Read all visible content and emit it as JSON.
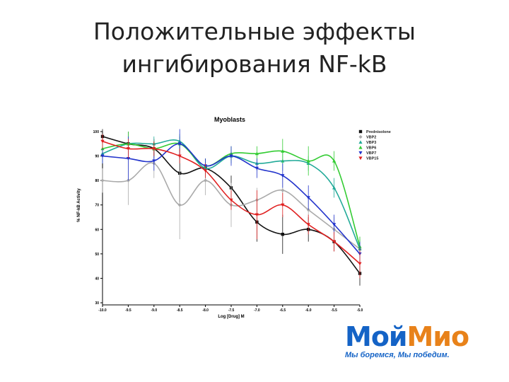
{
  "slide": {
    "title": [
      "Положительные эффекты",
      "ингибирования NF-kB"
    ],
    "logo": [
      "Мой",
      "Мио"
    ],
    "logo_slogan": "Мы боремся, Мы победим."
  },
  "chart_data": {
    "type": "scatter",
    "title": "Myoblasts",
    "x_label": "Log [Drug] M",
    "y_label": "% NF-kB Activity",
    "x": [
      -10,
      -9.5,
      -9,
      -8.5,
      -8,
      -7.5,
      -7,
      -6.5,
      -6,
      -5.5,
      -5
    ],
    "xlim": [
      -10,
      -5
    ],
    "xticks": [
      {
        "value": -10,
        "label": "-10.0"
      },
      -9.5,
      {
        "value": -9,
        "label": "-9.0"
      },
      -8.5,
      {
        "value": -8,
        "label": "-8.0"
      },
      -7.5,
      {
        "value": -7,
        "label": "-7.0"
      },
      -6.5,
      {
        "value": -6,
        "label": "-6.0"
      },
      -5.5,
      {
        "value": -5,
        "label": "-5.0"
      }
    ],
    "ylim": [
      30,
      100
    ],
    "yticks": [
      30,
      40,
      50,
      60,
      70,
      80,
      90,
      100
    ],
    "series": [
      {
        "name": "Prednisolone",
        "color": "#111111",
        "marker": "square",
        "values": [
          98,
          95,
          93,
          83,
          85,
          77,
          63,
          58,
          60,
          55,
          42
        ],
        "errors": [
          3,
          5,
          4,
          12,
          4,
          5,
          8,
          8,
          5,
          4,
          5
        ]
      },
      {
        "name": "VBP2",
        "color": "#aaaaaa",
        "marker": "diamond",
        "values": [
          80,
          80,
          87,
          70,
          80,
          70,
          72,
          76,
          68,
          60,
          52
        ],
        "errors": [
          5,
          10,
          6,
          14,
          6,
          9,
          5,
          6,
          5,
          5,
          5
        ]
      },
      {
        "name": "VBP3",
        "color": "#22aa99",
        "marker": "triangle",
        "values": [
          91,
          95,
          95,
          96,
          85,
          90,
          87,
          88,
          87,
          77,
          52
        ],
        "errors": [
          4,
          4,
          3,
          3,
          3,
          3,
          3,
          4,
          3,
          4,
          4
        ]
      },
      {
        "name": "VBP6",
        "color": "#33cc33",
        "marker": "triangle",
        "values": [
          93,
          95,
          93,
          95,
          86,
          91,
          91,
          92,
          88,
          88,
          53
        ],
        "errors": [
          3,
          5,
          3,
          3,
          3,
          3,
          3,
          5,
          6,
          4,
          4
        ]
      },
      {
        "name": "VBP7",
        "color": "#2233cc",
        "marker": "triangle-down",
        "values": [
          90,
          89,
          88,
          95,
          86,
          90,
          85,
          82,
          73,
          62,
          50
        ],
        "errors": [
          3,
          9,
          4,
          6,
          3,
          4,
          4,
          5,
          5,
          4,
          5
        ]
      },
      {
        "name": "VBP15",
        "color": "#e02020",
        "marker": "triangle-down",
        "values": [
          96,
          93,
          93,
          90,
          84,
          72,
          66,
          70,
          62,
          55,
          46
        ],
        "errors": [
          3,
          4,
          3,
          3,
          3,
          4,
          10,
          5,
          4,
          4,
          6
        ]
      }
    ]
  }
}
